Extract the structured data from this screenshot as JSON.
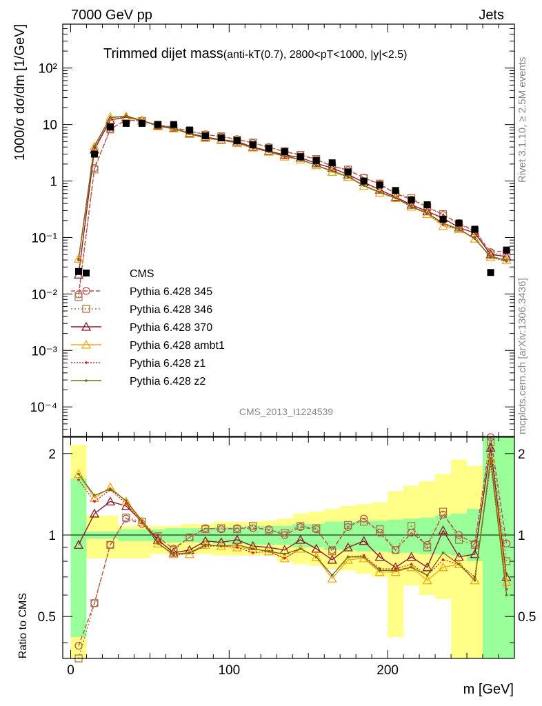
{
  "header": {
    "left": "7000 GeV pp",
    "right": "Jets"
  },
  "side": {
    "top": "Rivet 3.1.10, ≥ 2.5M events",
    "bottom": "mcplots.cern.ch [arXiv:1306.3436]"
  },
  "watermark": "CMS_2013_I1224539",
  "title": {
    "main": "Trimmed dijet mass",
    "sub": "(anti-kT(0.7), 2800<pT<1000, |y|<2.5)"
  },
  "axes": {
    "ylabel_top": "1000/σ dσ/dm [1/GeV]",
    "ylabel_bottom": "Ratio to CMS",
    "xlabel": "m [GeV]",
    "x_ticks": [
      "0",
      "100",
      "200"
    ],
    "y_ticks_top": [
      "10⁻⁴",
      "10⁻³",
      "10⁻²",
      "10⁻¹",
      "1",
      "10",
      "10²"
    ],
    "y_ticks_bottom": [
      "0.5",
      "1",
      "2"
    ]
  },
  "legend": [
    "CMS",
    "Pythia 6.428 345",
    "Pythia 6.428 346",
    "Pythia 6.428 370",
    "Pythia 6.428 ambt1",
    "Pythia 6.428 z1",
    "Pythia 6.428 z2"
  ],
  "colors": {
    "cms": "#000000",
    "p345": "#c04848",
    "p346": "#a07040",
    "p370": "#8b1a2b",
    "ambt1": "#f0a818",
    "z1": "#e02020",
    "z2": "#707018",
    "band_inner": "#99ff99",
    "band_outer": "#ffff88"
  },
  "chart_data": {
    "type": "line",
    "x": [
      5,
      15,
      25,
      35,
      45,
      55,
      65,
      75,
      85,
      95,
      105,
      115,
      125,
      135,
      145,
      155,
      165,
      175,
      185,
      195,
      205,
      215,
      225,
      235,
      245,
      255,
      265,
      275
    ],
    "xlim": [
      -5,
      280
    ],
    "top": {
      "yscale": "log",
      "ylim": [
        3e-05,
        600
      ],
      "series": [
        {
          "name": "CMS",
          "values": [
            0.025,
            3.0,
            9.0,
            10.5,
            10.5,
            10.0,
            10.0,
            8.0,
            6.3,
            5.8,
            5.2,
            4.4,
            3.8,
            3.3,
            2.7,
            2.3,
            2.1,
            1.45,
            1.0,
            0.85,
            0.68,
            0.46,
            0.38,
            0.21,
            0.18,
            0.14,
            0.024,
            0.06
          ]
        },
        {
          "name": "Pythia 6.428 345",
          "values": [
            0.0098,
            1.7,
            8.3,
            12.0,
            11.5,
            9.8,
            8.9,
            7.6,
            6.7,
            6.1,
            5.5,
            4.7,
            4.0,
            3.3,
            2.9,
            2.4,
            1.85,
            1.55,
            1.15,
            0.87,
            0.6,
            0.47,
            0.35,
            0.25,
            0.18,
            0.13,
            0.055,
            0.058
          ]
        },
        {
          "name": "Pythia 6.428 346",
          "values": [
            0.0088,
            1.6,
            8.2,
            12.1,
            11.6,
            9.9,
            8.8,
            7.7,
            6.6,
            6.2,
            5.4,
            4.8,
            3.9,
            3.4,
            2.9,
            2.45,
            1.8,
            1.6,
            1.13,
            0.9,
            0.6,
            0.5,
            0.34,
            0.26,
            0.17,
            0.13,
            0.052,
            0.05
          ]
        },
        {
          "name": "Pythia 6.428 370",
          "values": [
            0.022,
            3.6,
            12.0,
            13.5,
            11.8,
            9.6,
            8.6,
            7.0,
            6.0,
            5.4,
            5.0,
            4.0,
            3.4,
            2.9,
            2.6,
            2.05,
            1.7,
            1.3,
            0.95,
            0.7,
            0.52,
            0.38,
            0.29,
            0.22,
            0.15,
            0.12,
            0.05,
            0.046
          ]
        },
        {
          "name": "Pythia 6.428 ambt1",
          "values": [
            0.042,
            4.1,
            13.5,
            14.0,
            11.8,
            9.3,
            8.5,
            6.8,
            5.8,
            5.3,
            4.7,
            3.9,
            3.3,
            2.7,
            2.4,
            1.9,
            1.45,
            1.18,
            0.82,
            0.62,
            0.5,
            0.35,
            0.26,
            0.16,
            0.14,
            0.095,
            0.045,
            0.04
          ]
        },
        {
          "name": "Pythia 6.428 z1",
          "values": [
            0.04,
            4.0,
            13.2,
            13.8,
            11.7,
            9.4,
            8.4,
            6.9,
            5.7,
            5.3,
            4.7,
            3.8,
            3.3,
            2.7,
            2.4,
            1.9,
            1.5,
            1.2,
            0.84,
            0.64,
            0.51,
            0.36,
            0.27,
            0.17,
            0.14,
            0.098,
            0.044,
            0.038
          ]
        },
        {
          "name": "Pythia 6.428 z2",
          "values": [
            0.042,
            4.2,
            13.3,
            14.1,
            11.9,
            9.3,
            8.5,
            6.9,
            5.8,
            5.3,
            4.8,
            3.9,
            3.3,
            2.8,
            2.4,
            1.9,
            1.5,
            1.2,
            0.83,
            0.63,
            0.5,
            0.35,
            0.27,
            0.18,
            0.14,
            0.095,
            0.046,
            0.04
          ]
        }
      ]
    },
    "ratio": {
      "ylim": [
        0.35,
        2.3
      ],
      "band_inner": [
        [
          0.42,
          1.62
        ],
        [
          0.97,
          1.03
        ],
        [
          0.97,
          1.03
        ],
        [
          0.95,
          1.05
        ],
        [
          0.95,
          1.05
        ],
        [
          0.95,
          1.05
        ],
        [
          0.94,
          1.06
        ],
        [
          0.94,
          1.06
        ],
        [
          0.94,
          1.06
        ],
        [
          0.93,
          1.07
        ],
        [
          0.93,
          1.07
        ],
        [
          0.92,
          1.08
        ],
        [
          0.92,
          1.08
        ],
        [
          0.92,
          1.08
        ],
        [
          0.9,
          1.1
        ],
        [
          0.9,
          1.1
        ],
        [
          0.88,
          1.12
        ],
        [
          0.88,
          1.12
        ],
        [
          0.87,
          1.13
        ],
        [
          0.87,
          1.13
        ],
        [
          0.86,
          1.14
        ],
        [
          0.86,
          1.15
        ],
        [
          0.85,
          1.16
        ],
        [
          0.85,
          1.18
        ],
        [
          0.84,
          1.2
        ],
        [
          0.8,
          1.25
        ],
        [
          0.35,
          2.3
        ],
        [
          0.35,
          2.3
        ]
      ],
      "band_outer": [
        [
          0.35,
          2.15
        ],
        [
          0.82,
          1.18
        ],
        [
          0.82,
          1.18
        ],
        [
          0.82,
          1.08
        ],
        [
          0.82,
          1.08
        ],
        [
          0.85,
          1.08
        ],
        [
          0.85,
          1.08
        ],
        [
          0.85,
          1.1
        ],
        [
          0.85,
          1.1
        ],
        [
          0.84,
          1.12
        ],
        [
          0.84,
          1.12
        ],
        [
          0.84,
          1.12
        ],
        [
          0.84,
          1.13
        ],
        [
          0.8,
          1.15
        ],
        [
          0.78,
          1.2
        ],
        [
          0.77,
          1.22
        ],
        [
          0.75,
          1.25
        ],
        [
          0.74,
          1.28
        ],
        [
          0.72,
          1.3
        ],
        [
          0.7,
          1.32
        ],
        [
          0.42,
          1.45
        ],
        [
          0.65,
          1.52
        ],
        [
          0.6,
          1.58
        ],
        [
          0.58,
          1.68
        ],
        [
          0.35,
          1.9
        ],
        [
          0.35,
          1.8
        ],
        [
          0.35,
          2.3
        ],
        [
          0.35,
          2.3
        ]
      ],
      "series": [
        {
          "name": "Pythia 6.428 345",
          "values": [
            0.39,
            0.56,
            0.92,
            1.15,
            1.1,
            0.98,
            0.89,
            0.98,
            1.06,
            1.05,
            1.06,
            1.06,
            1.05,
            1.0,
            1.07,
            1.05,
            0.88,
            1.07,
            1.15,
            1.02,
            0.88,
            1.02,
            0.92,
            1.19,
            1.0,
            0.93,
            2.3,
            0.93
          ]
        },
        {
          "name": "Pythia 6.428 346",
          "values": [
            0.35,
            0.56,
            0.92,
            1.16,
            1.12,
            0.99,
            0.88,
            0.98,
            1.05,
            1.06,
            1.05,
            1.08,
            1.04,
            1.02,
            1.08,
            1.06,
            0.87,
            1.09,
            1.12,
            1.05,
            0.88,
            1.08,
            0.9,
            1.22,
            0.96,
            0.92,
            2.2,
            0.8
          ]
        },
        {
          "name": "Pythia 6.428 370",
          "values": [
            0.92,
            1.2,
            1.33,
            1.28,
            1.12,
            0.96,
            0.86,
            0.88,
            0.95,
            0.94,
            0.96,
            0.91,
            0.9,
            0.88,
            0.96,
            0.89,
            0.81,
            0.9,
            0.95,
            0.83,
            0.76,
            0.83,
            0.76,
            1.04,
            0.83,
            0.85,
            2.1,
            0.7
          ]
        },
        {
          "name": "Pythia 6.428 ambt1",
          "values": [
            1.68,
            1.37,
            1.5,
            1.33,
            1.12,
            0.93,
            0.85,
            0.85,
            0.92,
            0.91,
            0.9,
            0.89,
            0.87,
            0.82,
            0.89,
            0.83,
            0.69,
            0.81,
            0.82,
            0.73,
            0.73,
            0.76,
            0.68,
            0.76,
            0.78,
            0.68,
            1.9,
            0.67
          ]
        },
        {
          "name": "Pythia 6.428 z1",
          "values": [
            1.6,
            1.33,
            1.47,
            1.31,
            1.11,
            0.94,
            0.84,
            0.86,
            0.91,
            0.91,
            0.9,
            0.86,
            0.87,
            0.82,
            0.89,
            0.83,
            0.71,
            0.83,
            0.84,
            0.75,
            0.75,
            0.78,
            0.71,
            0.81,
            0.78,
            0.7,
            1.83,
            0.63
          ]
        },
        {
          "name": "Pythia 6.428 z2",
          "values": [
            1.68,
            1.4,
            1.48,
            1.34,
            1.13,
            0.93,
            0.85,
            0.86,
            0.92,
            0.91,
            0.92,
            0.89,
            0.87,
            0.85,
            0.89,
            0.83,
            0.71,
            0.83,
            0.83,
            0.74,
            0.74,
            0.76,
            0.71,
            0.86,
            0.78,
            0.68,
            1.92,
            0.6
          ]
        }
      ]
    }
  }
}
